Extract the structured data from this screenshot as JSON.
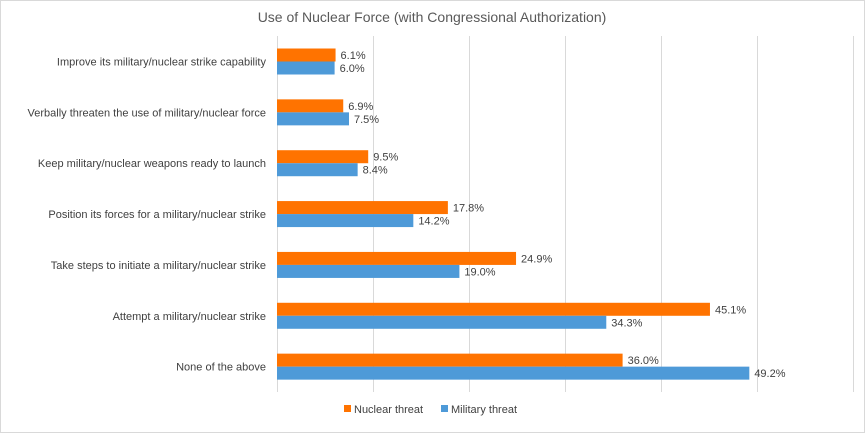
{
  "chart_data": {
    "type": "bar",
    "orientation": "horizontal",
    "title": "Use of Nuclear Force (with Congressional Authorization)",
    "categories": [
      "Improve its military/nuclear strike capability",
      "Verbally threaten the use of military/nuclear force",
      "Keep military/nuclear weapons ready to launch",
      "Position its forces for a military/nuclear strike",
      "Take steps to initiate a military/nuclear strike",
      "Attempt a military/nuclear strike",
      "None of the above"
    ],
    "series": [
      {
        "name": "Nuclear threat",
        "color": "#ff7300",
        "values": [
          6.1,
          6.9,
          9.5,
          17.8,
          24.9,
          45.1,
          36.0
        ],
        "labels": [
          "6.1%",
          "6.9%",
          "9.5%",
          "17.8%",
          "24.9%",
          "45.1%",
          "36.0%"
        ]
      },
      {
        "name": "Military threat",
        "color": "#4e9ad8",
        "values": [
          6.0,
          7.5,
          8.4,
          14.2,
          19.0,
          34.3,
          49.2
        ],
        "labels": [
          "6.0%",
          "7.5%",
          "8.4%",
          "14.2%",
          "19.0%",
          "34.3%",
          "49.2%"
        ]
      }
    ],
    "xlim": [
      0,
      60
    ],
    "grid": true,
    "legend": "bottom"
  }
}
